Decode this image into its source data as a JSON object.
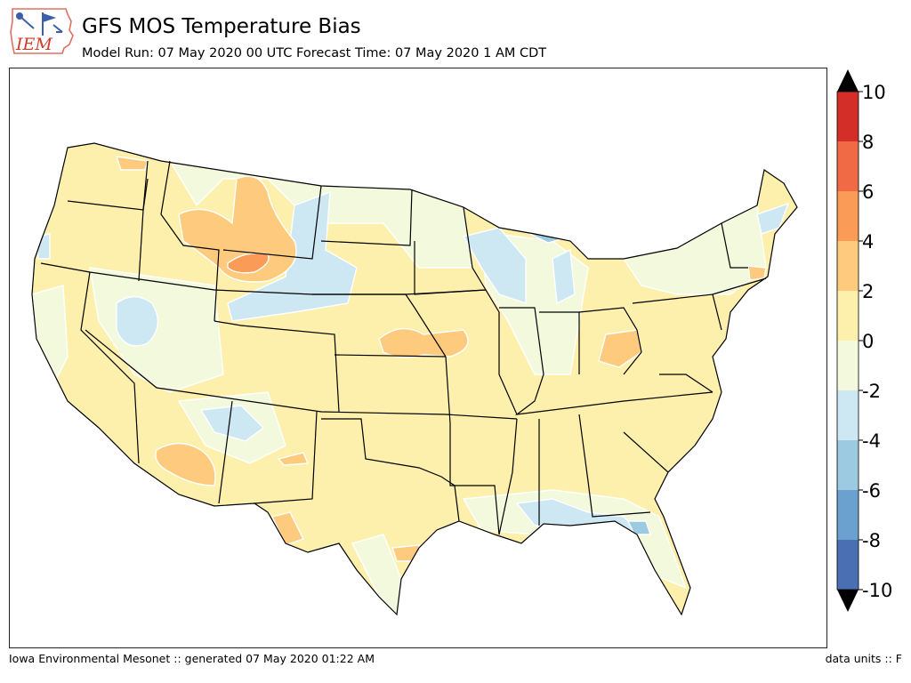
{
  "header": {
    "logo_text": "IEM",
    "title": "GFS MOS Temperature Bias",
    "subtitle": "Model Run: 07 May 2020 00 UTC Forecast Time: 07 May 2020 1 AM CDT"
  },
  "colorbar": {
    "levels": [
      -10,
      -8,
      -6,
      -4,
      -2,
      0,
      2,
      4,
      6,
      8,
      10
    ],
    "tick_labels": [
      "10",
      "8",
      "6",
      "4",
      "2",
      "0",
      "-2",
      "-4",
      "-6",
      "-8",
      "-10"
    ],
    "colors": [
      "#4a6fb2",
      "#6aa1ce",
      "#9ccae1",
      "#cde8f2",
      "#f2f9dc",
      "#fdefac",
      "#fecb7e",
      "#fb9b58",
      "#ef6a45",
      "#d32f28"
    ],
    "extend_low_color": "#000000",
    "extend_high_color": "#000000"
  },
  "map": {
    "region": "Contiguous United States",
    "bias_fields": [
      {
        "name": "northern-rockies-warm",
        "level": "2 to 4"
      },
      {
        "name": "wyoming-warm-core",
        "level": "4 to 6"
      },
      {
        "name": "central-plains-warm",
        "level": "2 to 4"
      },
      {
        "name": "arizona-warm",
        "level": "2 to 4"
      },
      {
        "name": "west-texas-warm",
        "level": "2 to 4"
      },
      {
        "name": "ohio-valley-warm",
        "level": "2 to 4"
      },
      {
        "name": "great-basin-cool",
        "level": "-4 to -2"
      },
      {
        "name": "dakotas-cool",
        "level": "-4 to -2"
      },
      {
        "name": "great-lakes-cool",
        "level": "-6 to -4"
      },
      {
        "name": "gulf-coast-cool",
        "level": "-4 to -2"
      }
    ]
  },
  "footer": {
    "left": "Iowa Environmental Mesonet :: generated 07 May 2020 01:22 AM",
    "right": "data units :: F"
  }
}
